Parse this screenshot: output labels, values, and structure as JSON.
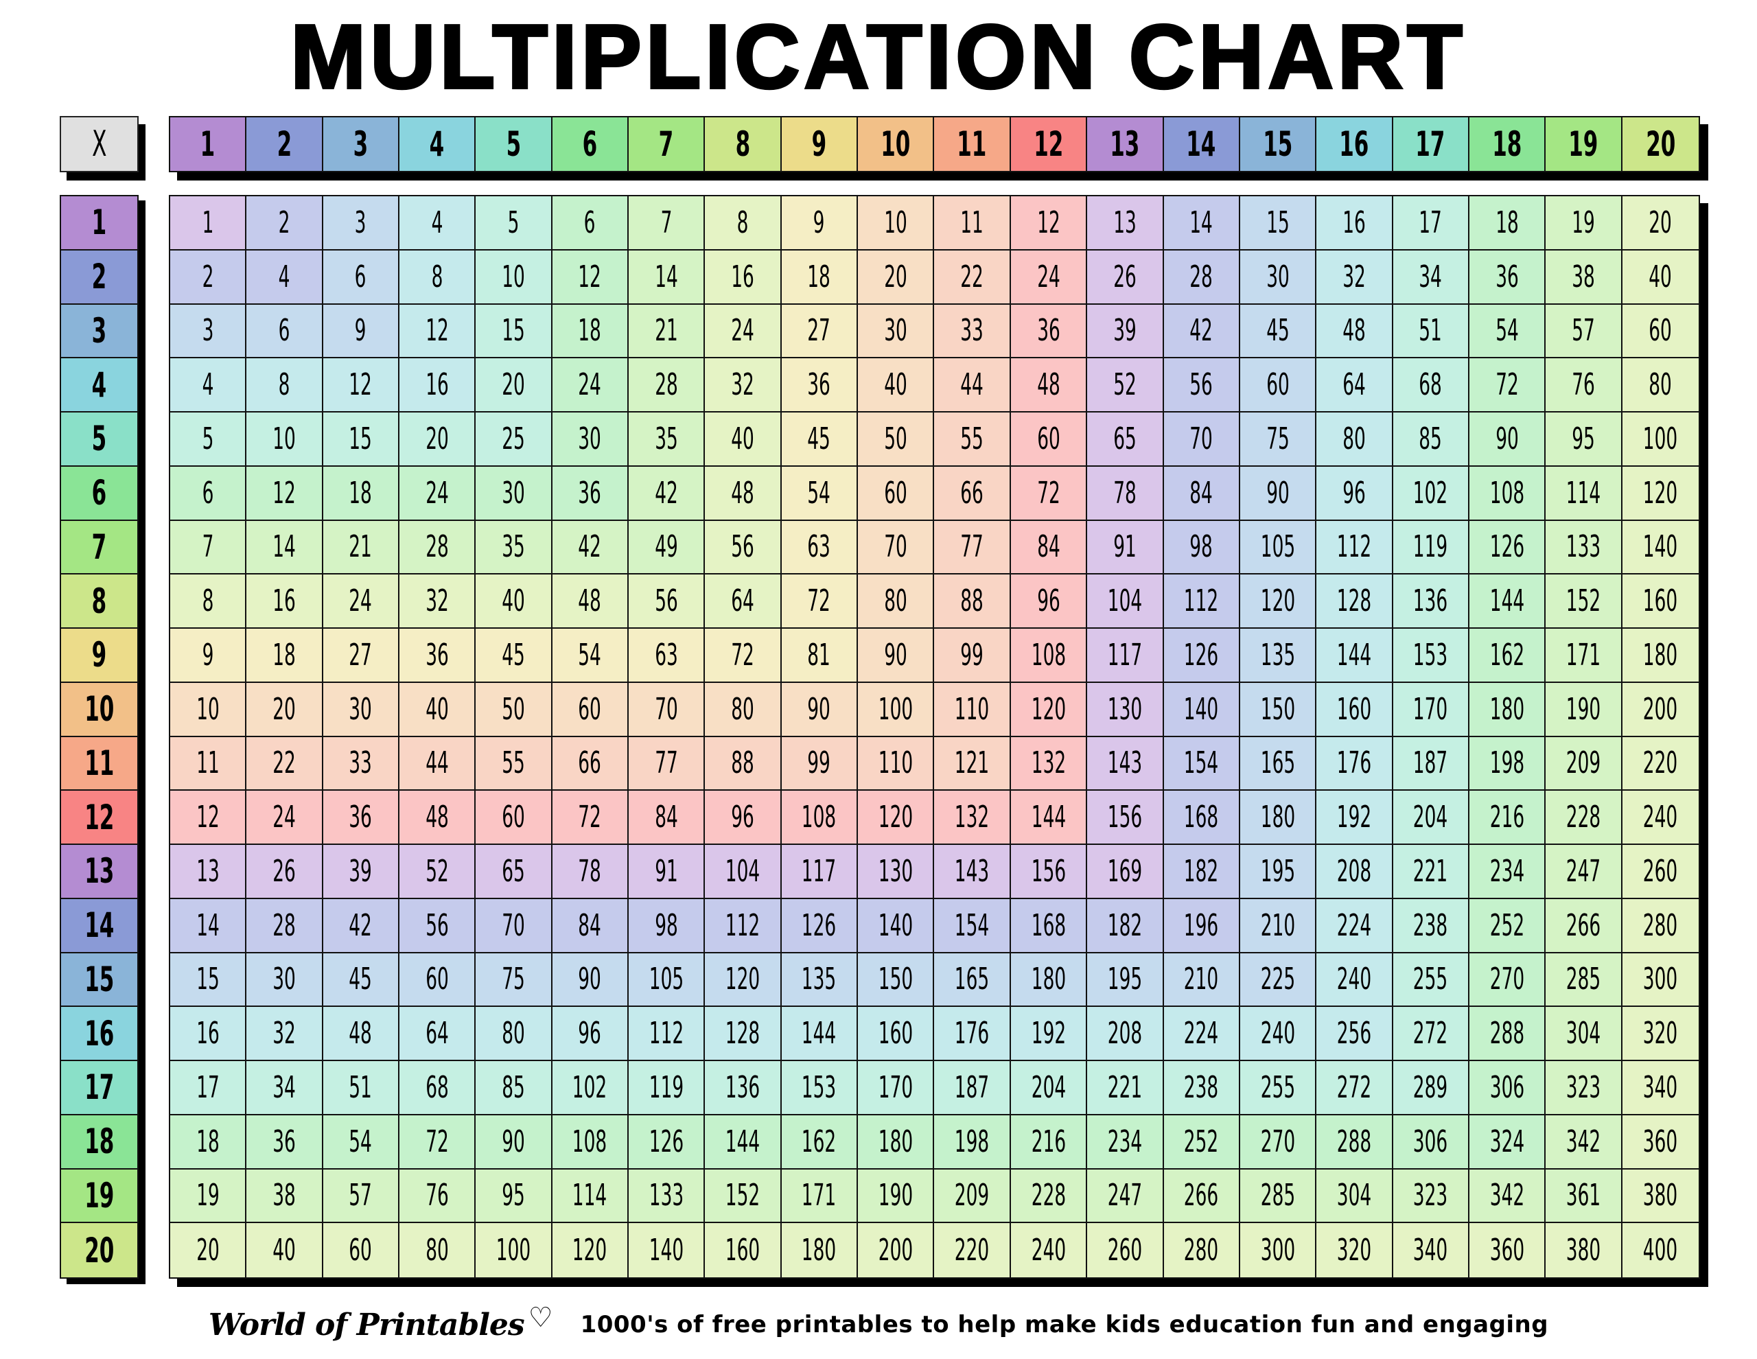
{
  "title": "MULTIPLICATION CHART",
  "corner_label": "X",
  "footer": {
    "logo": "World of Printables",
    "logo_icon": "heart-icon",
    "tagline": "1000's of free printables to help make kids education fun and engaging"
  },
  "colors": {
    "header": [
      "#b48cd2",
      "#8a9ad6",
      "#8ab4d8",
      "#8ad4de",
      "#8ae0c8",
      "#8ae496",
      "#a4e684",
      "#cce68a",
      "#ecdc8a",
      "#f2c088",
      "#f6a888",
      "#f88484"
    ],
    "cell": [
      "#dac6ea",
      "#c5cbec",
      "#c5dbee",
      "#c5eaec",
      "#c5f0e2",
      "#c5f2cc",
      "#d5f3c5",
      "#e5f3c5",
      "#f5eec5",
      "#f8dfc5",
      "#f9d5c5",
      "#fbc5c5"
    ],
    "corner": "#e0e0e0"
  },
  "chart_data": {
    "type": "table",
    "title": "MULTIPLICATION CHART",
    "column_headers": [
      1,
      2,
      3,
      4,
      5,
      6,
      7,
      8,
      9,
      10,
      11,
      12,
      13,
      14,
      15,
      16,
      17,
      18,
      19,
      20
    ],
    "row_headers": [
      1,
      2,
      3,
      4,
      5,
      6,
      7,
      8,
      9,
      10,
      11,
      12,
      13,
      14,
      15,
      16,
      17,
      18,
      19,
      20
    ],
    "rows": [
      [
        1,
        2,
        3,
        4,
        5,
        6,
        7,
        8,
        9,
        10,
        11,
        12,
        13,
        14,
        15,
        16,
        17,
        18,
        19,
        20
      ],
      [
        2,
        4,
        6,
        8,
        10,
        12,
        14,
        16,
        18,
        20,
        22,
        24,
        26,
        28,
        30,
        32,
        34,
        36,
        38,
        40
      ],
      [
        3,
        6,
        9,
        12,
        15,
        18,
        21,
        24,
        27,
        30,
        33,
        36,
        39,
        42,
        45,
        48,
        51,
        54,
        57,
        60
      ],
      [
        4,
        8,
        12,
        16,
        20,
        24,
        28,
        32,
        36,
        40,
        44,
        48,
        52,
        56,
        60,
        64,
        68,
        72,
        76,
        80
      ],
      [
        5,
        10,
        15,
        20,
        25,
        30,
        35,
        40,
        45,
        50,
        55,
        60,
        65,
        70,
        75,
        80,
        85,
        90,
        95,
        100
      ],
      [
        6,
        12,
        18,
        24,
        30,
        36,
        42,
        48,
        54,
        60,
        66,
        72,
        78,
        84,
        90,
        96,
        102,
        108,
        114,
        120
      ],
      [
        7,
        14,
        21,
        28,
        35,
        42,
        49,
        56,
        63,
        70,
        77,
        84,
        91,
        98,
        105,
        112,
        119,
        126,
        133,
        140
      ],
      [
        8,
        16,
        24,
        32,
        40,
        48,
        56,
        64,
        72,
        80,
        88,
        96,
        104,
        112,
        120,
        128,
        136,
        144,
        152,
        160
      ],
      [
        9,
        18,
        27,
        36,
        45,
        54,
        63,
        72,
        81,
        90,
        99,
        108,
        117,
        126,
        135,
        144,
        153,
        162,
        171,
        180
      ],
      [
        10,
        20,
        30,
        40,
        50,
        60,
        70,
        80,
        90,
        100,
        110,
        120,
        130,
        140,
        150,
        160,
        170,
        180,
        190,
        200
      ],
      [
        11,
        22,
        33,
        44,
        55,
        66,
        77,
        88,
        99,
        110,
        121,
        132,
        143,
        154,
        165,
        176,
        187,
        198,
        209,
        220
      ],
      [
        12,
        24,
        36,
        48,
        60,
        72,
        84,
        96,
        108,
        120,
        132,
        144,
        156,
        168,
        180,
        192,
        204,
        216,
        228,
        240
      ],
      [
        13,
        26,
        39,
        52,
        65,
        78,
        91,
        104,
        117,
        130,
        143,
        156,
        169,
        182,
        195,
        208,
        221,
        234,
        247,
        260
      ],
      [
        14,
        28,
        42,
        56,
        70,
        84,
        98,
        112,
        126,
        140,
        154,
        168,
        182,
        196,
        210,
        224,
        238,
        252,
        266,
        280
      ],
      [
        15,
        30,
        45,
        60,
        75,
        90,
        105,
        120,
        135,
        150,
        165,
        180,
        195,
        210,
        225,
        240,
        255,
        270,
        285,
        300
      ],
      [
        16,
        32,
        48,
        64,
        80,
        96,
        112,
        128,
        144,
        160,
        176,
        192,
        208,
        224,
        240,
        256,
        272,
        288,
        304,
        320
      ],
      [
        17,
        34,
        51,
        68,
        85,
        102,
        119,
        136,
        153,
        170,
        187,
        204,
        221,
        238,
        255,
        272,
        289,
        306,
        323,
        340
      ],
      [
        18,
        36,
        54,
        72,
        90,
        108,
        126,
        144,
        162,
        180,
        198,
        216,
        234,
        252,
        270,
        288,
        306,
        324,
        342,
        360
      ],
      [
        19,
        38,
        57,
        76,
        95,
        114,
        133,
        152,
        171,
        190,
        209,
        228,
        247,
        266,
        285,
        304,
        323,
        342,
        361,
        380
      ],
      [
        20,
        40,
        60,
        80,
        100,
        120,
        140,
        160,
        180,
        200,
        220,
        240,
        260,
        280,
        300,
        320,
        340,
        360,
        380,
        400
      ]
    ]
  }
}
